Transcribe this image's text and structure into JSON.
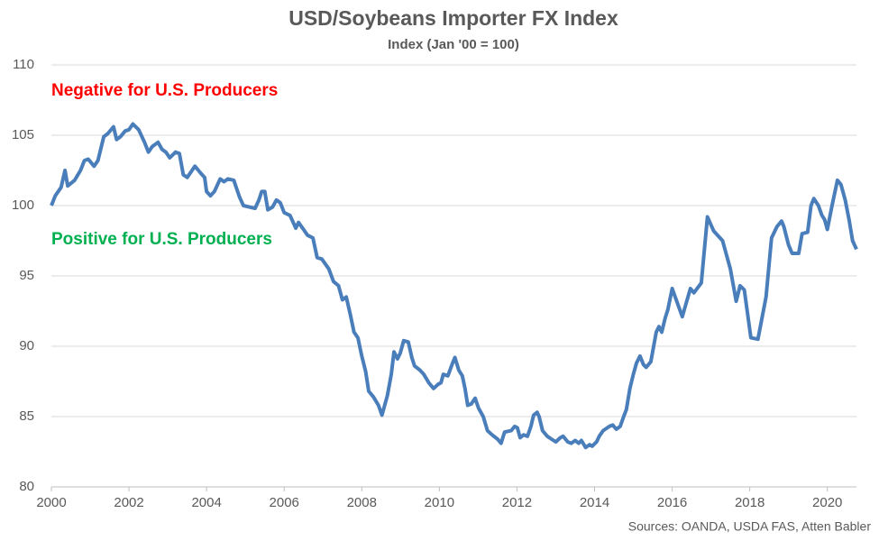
{
  "chart_data": {
    "type": "line",
    "title": "USD/Soybeans Importer FX Index",
    "subtitle": "Index (Jan '00 = 100)",
    "annotations": [
      {
        "text": "Negative for U.S. Producers",
        "color": "#ff0000"
      },
      {
        "text": "Positive for U.S. Producers",
        "color": "#00b050"
      }
    ],
    "source": "Sources: OANDA, USDA FAS, Atten Babler",
    "xlim": [
      2000,
      2020.75
    ],
    "xticks": [
      2000,
      2002,
      2004,
      2006,
      2008,
      2010,
      2012,
      2014,
      2016,
      2018,
      2020
    ],
    "ylim": [
      80,
      110
    ],
    "yticks": [
      80,
      85,
      90,
      95,
      100,
      105,
      110
    ],
    "grid": true,
    "series": [
      {
        "name": "USD/Soybeans Importer FX Index",
        "color": "#4a7ebb",
        "x": [
          2000.0,
          2000.1,
          2000.25,
          2000.35,
          2000.42,
          2000.6,
          2000.75,
          2000.85,
          2000.95,
          2001.1,
          2001.2,
          2001.35,
          2001.45,
          2001.6,
          2001.68,
          2001.78,
          2001.9,
          2002.0,
          2002.1,
          2002.25,
          2002.4,
          2002.5,
          2002.6,
          2002.75,
          2002.85,
          2002.95,
          2003.05,
          2003.2,
          2003.3,
          2003.4,
          2003.5,
          2003.6,
          2003.7,
          2003.85,
          2003.95,
          2004.0,
          2004.1,
          2004.2,
          2004.35,
          2004.45,
          2004.55,
          2004.7,
          2004.85,
          2004.95,
          2005.1,
          2005.25,
          2005.35,
          2005.42,
          2005.5,
          2005.58,
          2005.7,
          2005.8,
          2005.9,
          2006.0,
          2006.15,
          2006.3,
          2006.37,
          2006.5,
          2006.6,
          2006.74,
          2006.85,
          2006.97,
          2007.15,
          2007.27,
          2007.4,
          2007.5,
          2007.6,
          2007.7,
          2007.8,
          2007.9,
          2008.0,
          2008.1,
          2008.18,
          2008.3,
          2008.43,
          2008.52,
          2008.66,
          2008.76,
          2008.83,
          2008.92,
          2008.99,
          2009.08,
          2009.2,
          2009.29,
          2009.36,
          2009.5,
          2009.6,
          2009.73,
          2009.85,
          2009.97,
          2010.04,
          2010.1,
          2010.22,
          2010.34,
          2010.4,
          2010.5,
          2010.59,
          2010.66,
          2010.73,
          2010.82,
          2010.92,
          2011.01,
          2011.13,
          2011.24,
          2011.36,
          2011.5,
          2011.59,
          2011.68,
          2011.85,
          2011.94,
          2012.01,
          2012.08,
          2012.17,
          2012.27,
          2012.36,
          2012.43,
          2012.52,
          2012.57,
          2012.66,
          2012.78,
          2012.89,
          2013.0,
          2013.12,
          2013.19,
          2013.31,
          2013.4,
          2013.5,
          2013.59,
          2013.66,
          2013.77,
          2013.87,
          2013.94,
          2014.05,
          2014.12,
          2014.22,
          2014.38,
          2014.47,
          2014.56,
          2014.66,
          2014.75,
          2014.82,
          2014.91,
          2015.0,
          2015.08,
          2015.17,
          2015.26,
          2015.33,
          2015.45,
          2015.59,
          2015.66,
          2015.73,
          2015.82,
          2015.89,
          2016.0,
          2016.26,
          2016.47,
          2016.56,
          2016.75,
          2016.91,
          2017.07,
          2017.3,
          2017.5,
          2017.65,
          2017.75,
          2017.86,
          2018.03,
          2018.21,
          2018.42,
          2018.56,
          2018.7,
          2018.82,
          2018.88,
          2019.0,
          2019.09,
          2019.26,
          2019.35,
          2019.49,
          2019.58,
          2019.65,
          2019.77,
          2019.86,
          2019.93,
          2020.0,
          2020.12,
          2020.26,
          2020.35,
          2020.46,
          2020.56,
          2020.65,
          2020.75
        ],
        "values": [
          100,
          100.7,
          101.3,
          102.5,
          101.4,
          101.8,
          102.5,
          103.2,
          103.3,
          102.8,
          103.2,
          104.9,
          105.1,
          105.6,
          104.7,
          104.9,
          105.3,
          105.4,
          105.8,
          105.4,
          104.5,
          103.8,
          104.2,
          104.5,
          104.0,
          103.8,
          103.4,
          103.8,
          103.7,
          102.2,
          102.0,
          102.4,
          102.8,
          102.3,
          102.0,
          101.0,
          100.7,
          101.0,
          101.9,
          101.7,
          101.9,
          101.8,
          100.6,
          100.0,
          99.9,
          99.8,
          100.4,
          101.0,
          101.0,
          99.7,
          99.9,
          100.4,
          100.2,
          99.5,
          99.3,
          98.4,
          98.8,
          98.3,
          97.9,
          97.7,
          96.3,
          96.2,
          95.5,
          94.6,
          94.3,
          93.3,
          93.5,
          92.3,
          91.0,
          90.6,
          89.3,
          88.2,
          86.8,
          86.4,
          85.8,
          85.1,
          86.5,
          88.0,
          89.6,
          89.1,
          89.5,
          90.4,
          90.3,
          89.2,
          88.6,
          88.3,
          88.0,
          87.4,
          87.0,
          87.3,
          87.4,
          88.0,
          87.9,
          88.8,
          89.2,
          88.3,
          87.9,
          87.0,
          85.8,
          85.9,
          86.3,
          85.6,
          85.0,
          84.0,
          83.7,
          83.4,
          83.1,
          83.9,
          84.0,
          84.3,
          84.2,
          83.5,
          83.7,
          83.6,
          84.3,
          85.1,
          85.3,
          85.0,
          84.0,
          83.6,
          83.4,
          83.2,
          83.5,
          83.6,
          83.2,
          83.1,
          83.3,
          83.1,
          83.3,
          82.8,
          83.0,
          82.9,
          83.2,
          83.6,
          84.0,
          84.3,
          84.4,
          84.1,
          84.3,
          85.0,
          85.5,
          87.0,
          88.0,
          88.8,
          89.3,
          88.7,
          88.5,
          88.9,
          91.0,
          91.4,
          91.0,
          92.0,
          92.6,
          94.1,
          92.1,
          94.1,
          93.8,
          94.5,
          99.2,
          98.2,
          97.5,
          95.5,
          93.2,
          94.3,
          94.0,
          90.6,
          90.5,
          93.5,
          97.7,
          98.5,
          98.9,
          98.5,
          97.2,
          96.6,
          96.6,
          98.0,
          98.1,
          100.0,
          100.5,
          100.0,
          99.3,
          99.0,
          98.3,
          100.0,
          101.8,
          101.5,
          100.4,
          99.0,
          97.5,
          96.9
        ]
      }
    ]
  }
}
